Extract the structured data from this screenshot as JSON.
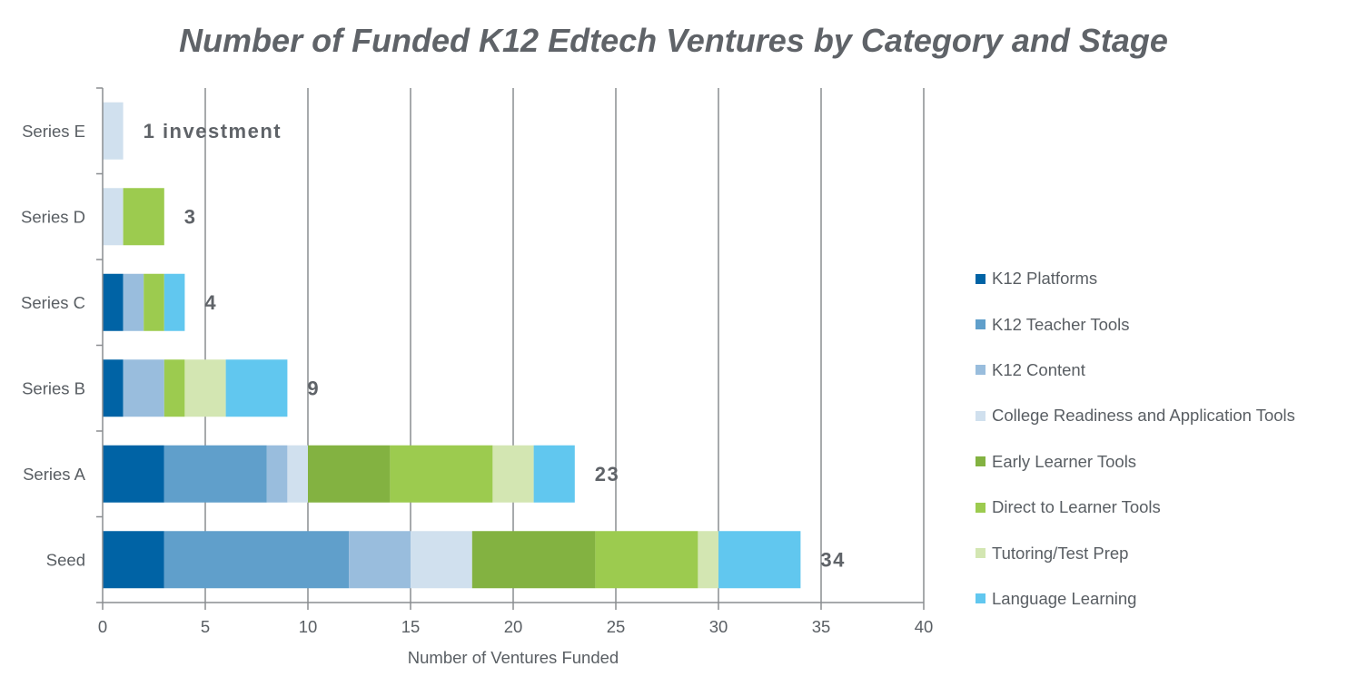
{
  "chart_data": {
    "type": "bar",
    "orientation": "horizontal",
    "stacked": true,
    "title": "Number of Funded K12 Edtech Ventures by Category and Stage",
    "xlabel": "Number of Ventures Funded",
    "ylabel": "",
    "xlim": [
      0,
      40
    ],
    "xticks": [
      "0",
      "5",
      "10",
      "15",
      "20",
      "25",
      "30",
      "35",
      "40"
    ],
    "grid": "vertical",
    "legend_position": "right",
    "categories": [
      "Series E",
      "Series D",
      "Series C",
      "Series B",
      "Series A",
      "Seed"
    ],
    "totals_labels": [
      "1 investment",
      "3",
      "4",
      "9",
      "23",
      "34"
    ],
    "series": [
      {
        "name": "K12 Platforms",
        "color": "#0063a5",
        "values": [
          0,
          0,
          1,
          1,
          3,
          3
        ]
      },
      {
        "name": "K12 Teacher Tools",
        "color": "#609fcb",
        "values": [
          0,
          0,
          0,
          0,
          5,
          9
        ]
      },
      {
        "name": "K12 Content",
        "color": "#99bddd",
        "values": [
          0,
          0,
          1,
          2,
          1,
          3
        ]
      },
      {
        "name": "College Readiness and Application Tools",
        "color": "#d0e0ee",
        "values": [
          1,
          1,
          0,
          0,
          1,
          3
        ]
      },
      {
        "name": "Early Learner Tools",
        "color": "#83b241",
        "values": [
          0,
          0,
          0,
          0,
          4,
          6
        ]
      },
      {
        "name": "Direct to Learner Tools",
        "color": "#9ccb4f",
        "values": [
          0,
          2,
          1,
          1,
          5,
          5
        ]
      },
      {
        "name": "Tutoring/Test Prep",
        "color": "#d3e6b2",
        "values": [
          0,
          0,
          0,
          2,
          2,
          1
        ]
      },
      {
        "name": "Language Learning",
        "color": "#61c7ef",
        "values": [
          0,
          0,
          1,
          3,
          2,
          4
        ]
      }
    ]
  }
}
